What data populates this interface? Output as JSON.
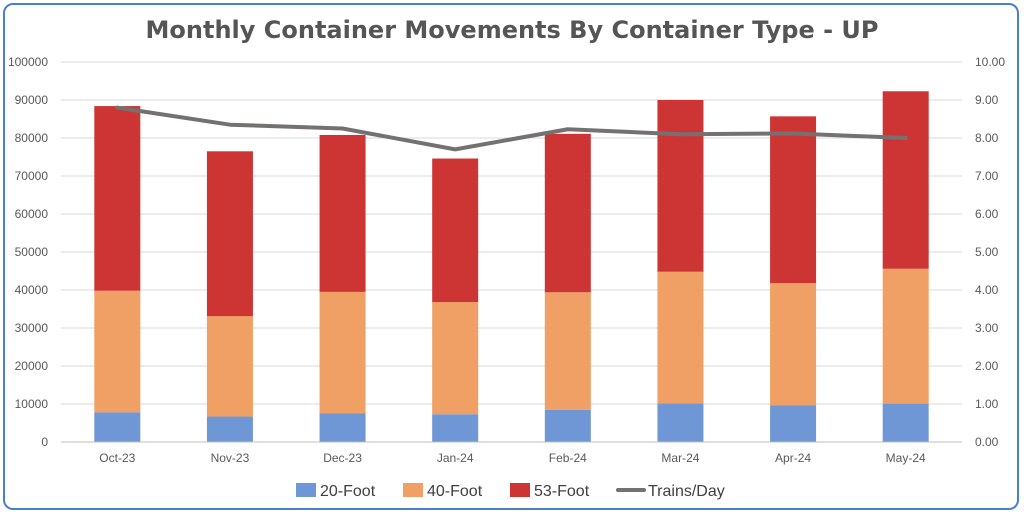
{
  "chart_data": {
    "type": "bar",
    "title": "Monthly Container Movements By Container Type - UP",
    "categories": [
      "Oct-23",
      "Nov-23",
      "Dec-23",
      "Jan-24",
      "Feb-24",
      "Mar-24",
      "Apr-24",
      "May-24"
    ],
    "series": [
      {
        "name": "20-Foot",
        "type": "bar",
        "stack": "containers",
        "color": "#6f97d6",
        "values": [
          7800,
          6700,
          7500,
          7300,
          8500,
          10200,
          9600,
          10100
        ]
      },
      {
        "name": "40-Foot",
        "type": "bar",
        "stack": "containers",
        "color": "#f0a064",
        "values": [
          32000,
          26400,
          32000,
          29500,
          30900,
          34600,
          32200,
          35500
        ]
      },
      {
        "name": "53-Foot",
        "type": "bar",
        "stack": "containers",
        "color": "#cd3535",
        "values": [
          48600,
          43400,
          41300,
          37800,
          41700,
          45200,
          43900,
          46700
        ]
      },
      {
        "name": "Trains/Day",
        "type": "line",
        "axis": "right",
        "color": "#767171",
        "values": [
          8.8,
          8.35,
          8.25,
          7.7,
          8.23,
          8.1,
          8.12,
          8.0
        ]
      }
    ],
    "left_axis": {
      "min": 0,
      "max": 100000,
      "ticks": [
        "0",
        "10000",
        "20000",
        "30000",
        "40000",
        "50000",
        "60000",
        "70000",
        "80000",
        "90000",
        "100000"
      ]
    },
    "right_axis": {
      "min": 0,
      "max": 10,
      "ticks": [
        "0.00",
        "1.00",
        "2.00",
        "3.00",
        "4.00",
        "5.00",
        "6.00",
        "7.00",
        "8.00",
        "9.00",
        "10.00"
      ]
    },
    "grid": true,
    "legend": "bottom"
  }
}
